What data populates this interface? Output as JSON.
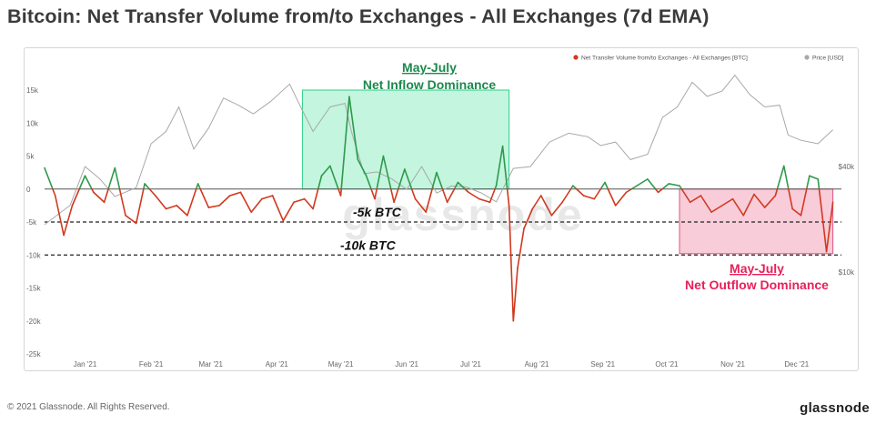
{
  "title": "Bitcoin: Net Transfer Volume from/to Exchanges - All Exchanges (7d EMA)",
  "footer": {
    "copyright": "© 2021 Glassnode. All Rights Reserved.",
    "brand": "glassnode"
  },
  "watermark": "glassnode",
  "colors": {
    "positive": "#2e9a4a",
    "negative": "#d1391e",
    "price": "#a8a8a8",
    "inflow_box": "#64e6aa",
    "outflow_box": "#f07a9e",
    "inflow_text": "#1a8a4c",
    "outflow_text": "#e8205a"
  },
  "chart_data": {
    "type": "line",
    "x_tick_labels": [
      "Jan '21",
      "Feb '21",
      "Mar '21",
      "Apr '21",
      "May '21",
      "Jun '21",
      "Jul '21",
      "Aug '21",
      "Sep '21",
      "Oct '21",
      "Nov '21",
      "Dec '21"
    ],
    "y_left_ticks": [
      "15k",
      "10k",
      "5k",
      "0",
      "-5k",
      "-10k",
      "-15k",
      "-20k",
      "-25k"
    ],
    "y_left_range": [
      -25000,
      15000
    ],
    "y_right_ticks": [
      "$40k",
      "$10k"
    ],
    "legend": [
      {
        "label": "Net Transfer Volume from/to Exchanges - All Exchanges [BTC]",
        "color": "#d1391e"
      },
      {
        "label": "Price [USD]",
        "color": "#a8a8a8"
      }
    ],
    "legend_position": "top-right",
    "reference_lines": [
      {
        "value": -5000,
        "label": "-5k BTC"
      },
      {
        "value": -10000,
        "label": "-10k BTC"
      }
    ],
    "annotations": [
      {
        "title": "May-July",
        "subtitle": "Net Inflow Dominance",
        "x_start": "2021-04-20",
        "x_end": "2021-07-26",
        "y_range": [
          0,
          15000
        ]
      },
      {
        "title": "May-July",
        "subtitle": "Net Outflow Dominance",
        "x_start": "2021-10-14",
        "x_end": "2021-12-25",
        "y_range": [
          -9800,
          0
        ]
      }
    ],
    "series": [
      {
        "name": "Net Transfer Volume from/to Exchanges - All Exchanges [BTC]",
        "x": [
          "2020-12-20",
          "2020-12-25",
          "2020-12-29",
          "2021-01-02",
          "2021-01-08",
          "2021-01-12",
          "2021-01-17",
          "2021-01-22",
          "2021-01-27",
          "2021-02-01",
          "2021-02-05",
          "2021-02-10",
          "2021-02-15",
          "2021-02-20",
          "2021-02-25",
          "2021-03-02",
          "2021-03-07",
          "2021-03-12",
          "2021-03-17",
          "2021-03-22",
          "2021-03-27",
          "2021-04-01",
          "2021-04-06",
          "2021-04-11",
          "2021-04-16",
          "2021-04-21",
          "2021-04-25",
          "2021-04-29",
          "2021-05-03",
          "2021-05-08",
          "2021-05-12",
          "2021-05-16",
          "2021-05-20",
          "2021-05-24",
          "2021-05-28",
          "2021-06-02",
          "2021-06-07",
          "2021-06-12",
          "2021-06-17",
          "2021-06-22",
          "2021-06-27",
          "2021-07-02",
          "2021-07-07",
          "2021-07-12",
          "2021-07-17",
          "2021-07-20",
          "2021-07-23",
          "2021-07-26",
          "2021-07-28",
          "2021-07-30",
          "2021-08-02",
          "2021-08-06",
          "2021-08-10",
          "2021-08-15",
          "2021-08-20",
          "2021-08-25",
          "2021-08-30",
          "2021-09-04",
          "2021-09-09",
          "2021-09-14",
          "2021-09-19",
          "2021-09-24",
          "2021-09-29",
          "2021-10-04",
          "2021-10-09",
          "2021-10-14",
          "2021-10-19",
          "2021-10-24",
          "2021-10-29",
          "2021-11-03",
          "2021-11-08",
          "2021-11-13",
          "2021-11-18",
          "2021-11-23",
          "2021-11-28",
          "2021-12-02",
          "2021-12-06",
          "2021-12-10",
          "2021-12-14",
          "2021-12-18",
          "2021-12-22",
          "2021-12-25"
        ],
        "values": [
          3200,
          -1000,
          -7000,
          -2500,
          2000,
          -500,
          -2000,
          3200,
          -4000,
          -5200,
          800,
          -1000,
          -3000,
          -2500,
          -4000,
          800,
          -2800,
          -2500,
          -1000,
          -500,
          -3500,
          -1500,
          -1000,
          -4800,
          -2000,
          -1500,
          -3000,
          2000,
          3500,
          -1000,
          14000,
          4500,
          2000,
          -1500,
          5000,
          -2000,
          3000,
          -1500,
          -3500,
          2500,
          -2000,
          1000,
          -500,
          -1500,
          -2000,
          500,
          6500,
          -2500,
          -20000,
          -12000,
          -6000,
          -3000,
          -1000,
          -4000,
          -2000,
          500,
          -1000,
          -1500,
          1000,
          -2500,
          -500,
          500,
          1500,
          -500,
          800,
          500,
          -2000,
          -1000,
          -3500,
          -2500,
          -1500,
          -4000,
          -800,
          -2800,
          -1000,
          3500,
          -3000,
          -4000,
          2000,
          1500,
          -9500,
          -2000
        ],
        "color": "#d1391e"
      },
      {
        "name": "Price [USD]",
        "x": [
          "2020-12-20",
          "2021-01-01",
          "2021-01-08",
          "2021-01-15",
          "2021-01-22",
          "2021-02-01",
          "2021-02-08",
          "2021-02-15",
          "2021-02-21",
          "2021-02-28",
          "2021-03-07",
          "2021-03-14",
          "2021-03-21",
          "2021-03-28",
          "2021-04-05",
          "2021-04-14",
          "2021-04-20",
          "2021-04-25",
          "2021-05-03",
          "2021-05-10",
          "2021-05-13",
          "2021-05-19",
          "2021-05-25",
          "2021-06-01",
          "2021-06-08",
          "2021-06-15",
          "2021-06-22",
          "2021-06-29",
          "2021-07-06",
          "2021-07-13",
          "2021-07-20",
          "2021-07-28",
          "2021-08-05",
          "2021-08-14",
          "2021-08-23",
          "2021-09-01",
          "2021-09-07",
          "2021-09-14",
          "2021-09-21",
          "2021-09-29",
          "2021-10-06",
          "2021-10-13",
          "2021-10-20",
          "2021-10-27",
          "2021-11-03",
          "2021-11-09",
          "2021-11-16",
          "2021-11-23",
          "2021-11-30",
          "2021-12-04",
          "2021-12-10",
          "2021-12-18",
          "2021-12-25"
        ],
        "values": [
          23500,
          29000,
          40000,
          36500,
          31500,
          34000,
          46500,
          50000,
          57000,
          45000,
          51000,
          59500,
          57500,
          55000,
          58500,
          63500,
          56000,
          50000,
          57000,
          58000,
          50000,
          38000,
          38500,
          36500,
          33500,
          40000,
          32500,
          34500,
          34200,
          32500,
          30000,
          39500,
          40000,
          47000,
          49500,
          48500,
          46000,
          47000,
          42000,
          43500,
          54000,
          57000,
          64000,
          60000,
          61500,
          66000,
          60500,
          57000,
          57500,
          49000,
          47500,
          46500,
          50500
        ]
      }
    ]
  }
}
